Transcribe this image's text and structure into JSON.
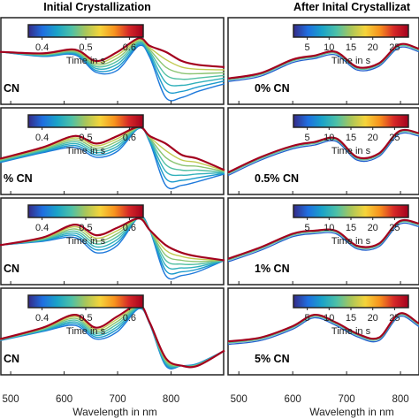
{
  "chart_data": {
    "type": "line",
    "column_titles": [
      "Initial Crystallization",
      "After Inital Crystallizat"
    ],
    "xlabel": "Wavelength in nm",
    "xlim": [
      480,
      900
    ],
    "xticks_left": [
      "500",
      "600",
      "700",
      "800"
    ],
    "xticks_right": [
      "500",
      "600",
      "700",
      "800"
    ],
    "ylim": [
      0,
      1
    ],
    "colormap": [
      "#352a87",
      "#1f6fe0",
      "#1aa3c8",
      "#4cc0a8",
      "#a9c65a",
      "#f5d43b",
      "#f7931e",
      "#d62828",
      "#a3001e"
    ],
    "colorbar_initial": {
      "ticks": [
        "0.4",
        "0.5",
        "0.6"
      ],
      "label": "Time in s"
    },
    "colorbar_after": {
      "ticks": [
        "5",
        "10",
        "15",
        "20",
        "25"
      ],
      "label": "Time in s"
    },
    "panels": [
      {
        "label": "0% CN",
        "label_initial": "CN",
        "curves": 7
      },
      {
        "label": "0.5% CN",
        "label_initial": "% CN",
        "curves": 7
      },
      {
        "label": "1% CN",
        "label_initial": "CN",
        "curves": 7
      },
      {
        "label": "5% CN",
        "label_initial": "CN",
        "curves": 7
      }
    ],
    "series_initial": [
      {
        "x": [
          480,
          560,
          620,
          660,
          700,
          740,
          760,
          790,
          820,
          850,
          900
        ],
        "values_start": [
          0.62,
          0.56,
          0.58,
          0.35,
          0.38,
          0.7,
          0.55,
          0.02,
          0.02,
          0.1,
          0.2
        ],
        "values_end": [
          0.62,
          0.6,
          0.65,
          0.5,
          0.62,
          0.8,
          0.7,
          0.62,
          0.5,
          0.45,
          0.42
        ]
      },
      {
        "x": [
          480,
          560,
          620,
          660,
          700,
          740,
          760,
          790,
          820,
          850,
          900
        ],
        "values_start": [
          0.35,
          0.48,
          0.55,
          0.42,
          0.5,
          0.8,
          0.62,
          0.05,
          0.05,
          0.1,
          0.2
        ],
        "values_end": [
          0.4,
          0.55,
          0.7,
          0.6,
          0.7,
          0.82,
          0.7,
          0.6,
          0.45,
          0.4,
          0.25
        ]
      },
      {
        "x": [
          480,
          560,
          620,
          660,
          700,
          740,
          760,
          790,
          820,
          850,
          900
        ],
        "values_start": [
          0.45,
          0.5,
          0.55,
          0.35,
          0.45,
          0.82,
          0.65,
          0.05,
          0.05,
          0.1,
          0.25
        ],
        "values_end": [
          0.45,
          0.55,
          0.72,
          0.58,
          0.68,
          0.8,
          0.65,
          0.45,
          0.35,
          0.3,
          0.25
        ]
      },
      {
        "x": [
          480,
          560,
          620,
          660,
          700,
          740,
          760,
          790,
          820,
          850,
          900
        ],
        "values_start": [
          0.38,
          0.5,
          0.58,
          0.4,
          0.5,
          0.8,
          0.6,
          0.05,
          0.05,
          0.08,
          0.25
        ],
        "values_end": [
          0.4,
          0.55,
          0.72,
          0.55,
          0.7,
          0.85,
          0.62,
          0.15,
          0.05,
          0.05,
          0.25
        ]
      }
    ],
    "series_after": [
      {
        "x": [
          480,
          540,
          600,
          640,
          680,
          720,
          760,
          800,
          850,
          900
        ],
        "values": [
          0.25,
          0.32,
          0.5,
          0.55,
          0.6,
          0.4,
          0.45,
          0.7,
          0.62,
          0.75
        ]
      },
      {
        "x": [
          480,
          540,
          600,
          640,
          680,
          720,
          760,
          800,
          850,
          900
        ],
        "values": [
          0.2,
          0.4,
          0.55,
          0.6,
          0.65,
          0.4,
          0.45,
          0.75,
          0.7,
          0.8
        ]
      },
      {
        "x": [
          480,
          540,
          600,
          640,
          680,
          720,
          760,
          800,
          850,
          900
        ],
        "values": [
          0.25,
          0.4,
          0.58,
          0.62,
          0.62,
          0.42,
          0.45,
          0.75,
          0.7,
          0.85
        ]
      },
      {
        "x": [
          480,
          540,
          600,
          640,
          680,
          720,
          760,
          800,
          850,
          900
        ],
        "values": [
          0.35,
          0.4,
          0.55,
          0.7,
          0.6,
          0.45,
          0.4,
          0.72,
          0.55,
          0.85
        ]
      }
    ]
  }
}
